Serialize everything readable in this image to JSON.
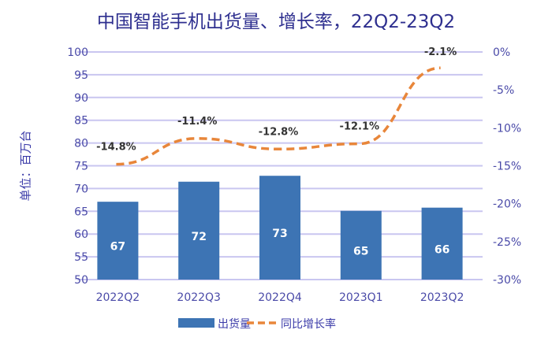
{
  "chart_data": {
    "type": "bar+line",
    "title": "中国智能手机出货量、增长率，22Q2-23Q2",
    "ylabel": "单位：百万台",
    "y2label": "",
    "categories": [
      "2022Q2",
      "2022Q3",
      "2022Q4",
      "2023Q1",
      "2023Q2"
    ],
    "ylim": [
      50,
      100
    ],
    "yticks": [
      50,
      55,
      60,
      65,
      70,
      75,
      80,
      85,
      90,
      95,
      100
    ],
    "y2lim": [
      -30,
      0
    ],
    "y2ticks": [
      "-30%",
      "-25%",
      "-20%",
      "-15%",
      "-10%",
      "-5%",
      "0%"
    ],
    "grid": true,
    "legend_position": "bottom",
    "series": [
      {
        "name": "出货量",
        "type": "bar",
        "axis": "left",
        "values": [
          67.1,
          71.5,
          72.8,
          65.1,
          65.8
        ],
        "labels": [
          "67",
          "72",
          "73",
          "65",
          "66"
        ],
        "color": "#3d74b4"
      },
      {
        "name": "同比增长率",
        "type": "line",
        "style": "dashed",
        "axis": "right",
        "values": [
          -14.8,
          -11.4,
          -12.8,
          -12.1,
          -2.1
        ],
        "labels": [
          "-14.8%",
          "-11.4%",
          "-12.8%",
          "-12.1%",
          "-2.1%"
        ],
        "color": "#e8863a"
      }
    ]
  }
}
